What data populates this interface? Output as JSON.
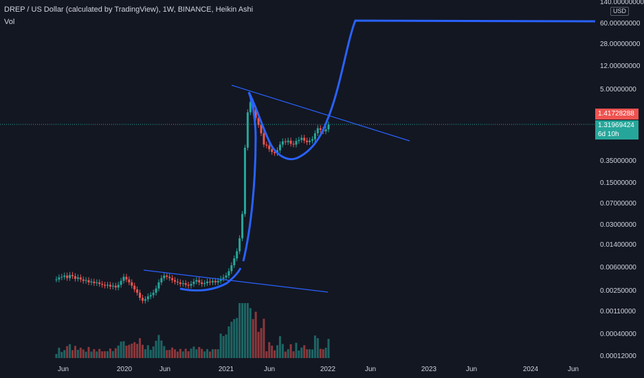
{
  "header": {
    "title": "DREP / US Dollar (calculated by TradingView), 1W, BINANCE, Heikin Ashi",
    "volume_label": "Vol"
  },
  "price_axis": {
    "currency": "USD",
    "top_label": "140.00000000",
    "labels": [
      "60.00000000",
      "28.00000000",
      "12.00000000",
      "5.00000000",
      "0.35000000",
      "0.15000000",
      "0.07000000",
      "0.03000000",
      "0.01400000",
      "0.00600000",
      "0.00250000",
      "0.00110000",
      "0.00040000",
      "0.00012000"
    ]
  },
  "price_tags": {
    "last_price": "1.41728288",
    "current_price": "1.31969424",
    "countdown": "6d 10h"
  },
  "time_axis": [
    "Jun",
    "2020",
    "Jun",
    "2021",
    "Jun",
    "2022",
    "Jun",
    "2023",
    "Jun",
    "2024",
    "Jun"
  ],
  "colors": {
    "background": "#131722",
    "up": "#26a69a",
    "down": "#ef5350",
    "drawing": "#2962ff",
    "text": "#d1d4dc"
  },
  "chart_data": {
    "type": "candlestick",
    "symbol": "DREPUSD",
    "interval": "1W",
    "scale": "log",
    "series": [
      {
        "name": "weekly",
        "values": [
          0.0038,
          0.0041,
          0.0042,
          0.0044,
          0.004,
          0.0045,
          0.0043,
          0.0039,
          0.0041,
          0.0038,
          0.0036,
          0.0037,
          0.0034,
          0.0035,
          0.0033,
          0.0034,
          0.0032,
          0.0031,
          0.003,
          0.0031,
          0.0029,
          0.003,
          0.0028,
          0.0031,
          0.0036,
          0.0042,
          0.0038,
          0.0034,
          0.003,
          0.0026,
          0.0023,
          0.0019,
          0.0017,
          0.0018,
          0.002,
          0.0021,
          0.0023,
          0.0027,
          0.0034,
          0.004,
          0.0044,
          0.0042,
          0.004,
          0.0037,
          0.0035,
          0.0034,
          0.0032,
          0.0033,
          0.0031,
          0.003,
          0.0032,
          0.0035,
          0.0037,
          0.0034,
          0.0032,
          0.0033,
          0.0035,
          0.0034,
          0.0036,
          0.0034,
          0.0036,
          0.0039,
          0.0041,
          0.0044,
          0.0052,
          0.0065,
          0.0084,
          0.011,
          0.018,
          0.045,
          0.55,
          2.1,
          3.1,
          2.4,
          1.7,
          1.3,
          0.95,
          0.62,
          0.6,
          0.52,
          0.47,
          0.45,
          0.5,
          0.62,
          0.7,
          0.68,
          0.72,
          0.64,
          0.62,
          0.71,
          0.74,
          0.8,
          0.72,
          0.68,
          0.72,
          0.76,
          0.95,
          1.15,
          1.08,
          1.02,
          1.1,
          1.32
        ]
      }
    ]
  }
}
